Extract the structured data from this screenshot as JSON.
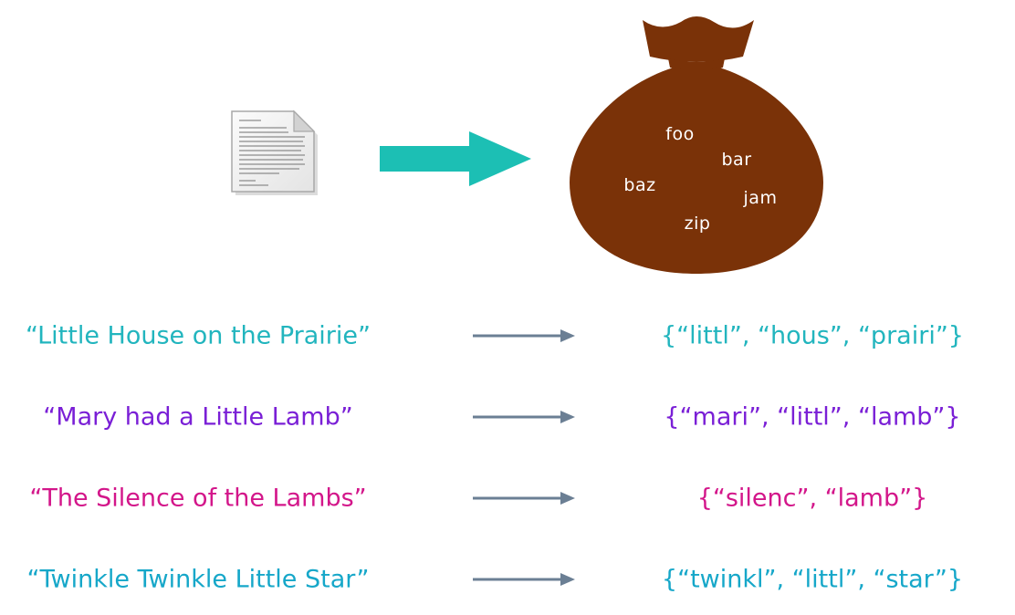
{
  "bag": {
    "words": [
      "foo",
      "bar",
      "baz",
      "jam",
      "zip"
    ]
  },
  "colors": {
    "arrow": "#1cbfb4",
    "bag": "#7a3208",
    "row_arrow": "#6b7f94"
  },
  "rows": [
    {
      "title": "“Little House on the Prairie”",
      "stems": "{“littl”, “hous”, “prairi”}",
      "color": "#22b5be"
    },
    {
      "title": "“Mary had a Little Lamb”",
      "stems": "{“mari”, “littl”, “lamb”}",
      "color": "#7a1fd6"
    },
    {
      "title": "“The Silence of the Lambs”",
      "stems": "{“silenc”, “lamb”}",
      "color": "#d3168a"
    },
    {
      "title": "“Twinkle Twinkle Little Star”",
      "stems": "{“twinkl”, “littl”, “star”}",
      "color": "#16a7c9"
    }
  ]
}
